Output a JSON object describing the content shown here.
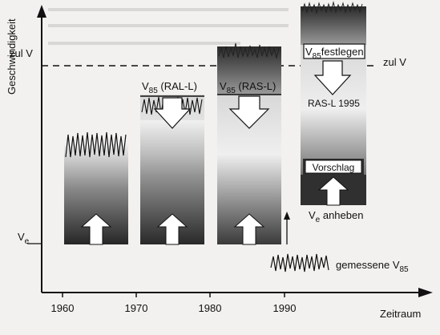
{
  "axes": {
    "y_title": "Geschwindigkeit",
    "x_title": "Zeitraum",
    "x_ticks": [
      "1960",
      "1970",
      "1980",
      "1990"
    ]
  },
  "labels": {
    "zul_v_left": "zul V",
    "zul_v_right": "zul V",
    "ve_axis": {
      "main": "V",
      "sub": "e"
    },
    "v85_ral": {
      "main": "V",
      "sub": "85",
      "rest": " (RAL-L)"
    },
    "v85_ras": {
      "main": "V",
      "sub": "85",
      "rest": " (RAS-L)"
    },
    "v85_festlegen": {
      "main": "V",
      "sub": "85",
      "rest": "festlegen"
    },
    "ras_l_1995": "RAS-L 1995",
    "vorschlag": "Vorschlag",
    "ve_anheben": {
      "main": "V",
      "sub": "e",
      "rest": " anheben"
    },
    "gemessene": {
      "main": "gemessene V",
      "sub": "85"
    }
  },
  "icons": [
    "up-arrow-icon",
    "down-arrow-icon",
    "zigzag-speed-trace-icon"
  ],
  "colors": {
    "dark": "#2a2a2a",
    "light": "#f7f7f7",
    "ink": "#111111",
    "paper": "#f2f1ef"
  }
}
